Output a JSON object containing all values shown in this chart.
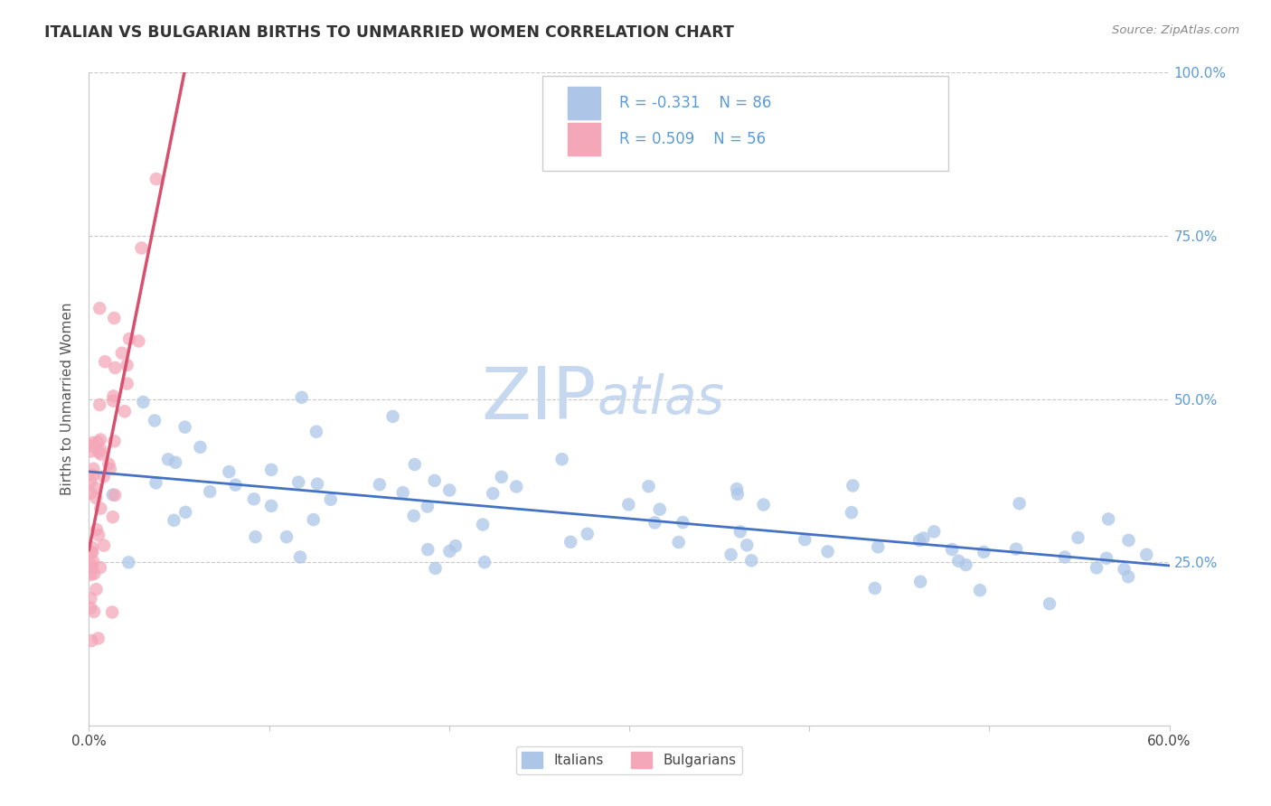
{
  "title": "ITALIAN VS BULGARIAN BIRTHS TO UNMARRIED WOMEN CORRELATION CHART",
  "source": "Source: ZipAtlas.com",
  "ylabel": "Births to Unmarried Women",
  "xlim": [
    0.0,
    0.6
  ],
  "ylim": [
    0.0,
    1.0
  ],
  "x_ticks": [
    0.0,
    0.1,
    0.2,
    0.3,
    0.4,
    0.5,
    0.6
  ],
  "x_tick_labels": [
    "0.0%",
    "",
    "",
    "",
    "",
    "",
    "60.0%"
  ],
  "y_ticks": [
    0.0,
    0.25,
    0.5,
    0.75,
    1.0
  ],
  "y_tick_labels": [
    "",
    "25.0%",
    "50.0%",
    "75.0%",
    "100.0%"
  ],
  "italian_color": "#adc6e8",
  "bulgarian_color": "#f4a7b9",
  "italian_line_color": "#4472c4",
  "bulgarian_line_color": "#d94f6e",
  "legend_italian_label": "Italians",
  "legend_bulgarian_label": "Bulgarians",
  "R_italian": -0.331,
  "N_italian": 86,
  "R_bulgarian": 0.509,
  "N_bulgarian": 56,
  "bg_color": "#ffffff",
  "grid_color": "#c8c8c8",
  "watermark_zip": "ZIP",
  "watermark_atlas": "atlas",
  "watermark_color": "#c5d8ef",
  "title_color": "#333333",
  "source_color": "#888888",
  "axis_label_color": "#555555",
  "tick_color": "#5b9bd5",
  "it_seed": 42,
  "bg_seed": 99
}
